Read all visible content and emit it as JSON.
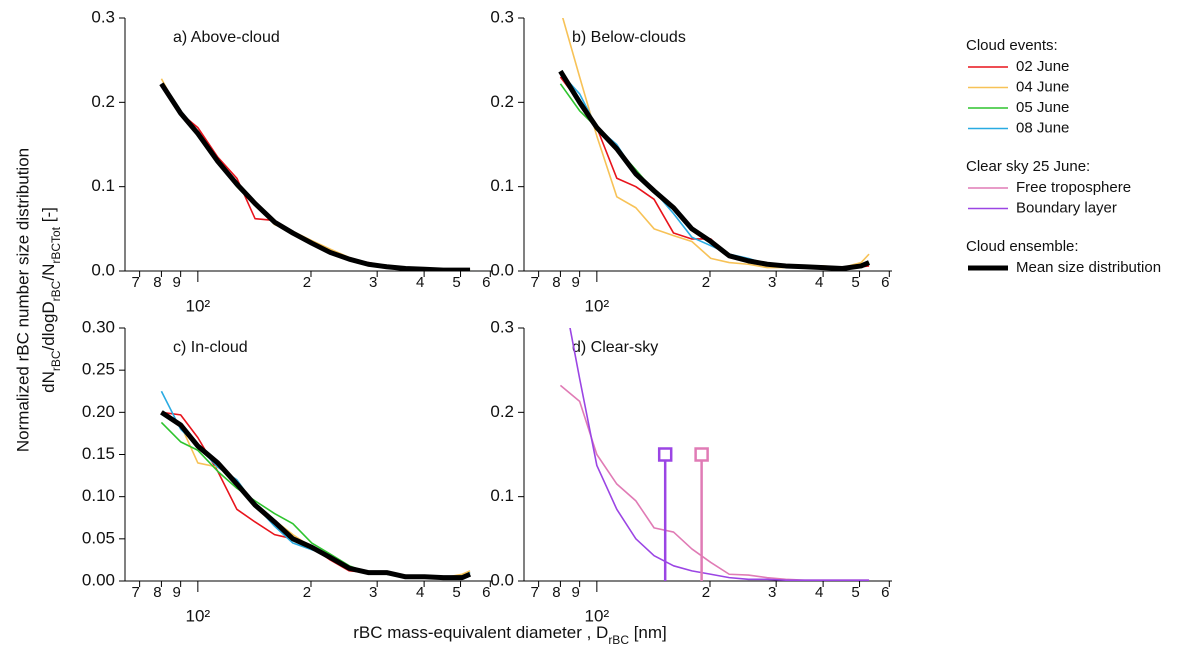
{
  "chart_data": [
    {
      "type": "line",
      "title": "a) Above-cloud",
      "log_x": true,
      "x": [
        80,
        90,
        100,
        113,
        127,
        142,
        160,
        179,
        201,
        225,
        253,
        284,
        318,
        357,
        401,
        450,
        505,
        530
      ],
      "xlim": [
        64,
        610
      ],
      "xticks": [
        {
          "value": 70,
          "label": "7"
        },
        {
          "value": 80,
          "label": "8"
        },
        {
          "value": 90,
          "label": "9"
        },
        {
          "value": 100,
          "label": "10²"
        },
        {
          "value": 200,
          "label": "2"
        },
        {
          "value": 300,
          "label": "3"
        },
        {
          "value": 400,
          "label": "4"
        },
        {
          "value": 500,
          "label": "5"
        },
        {
          "value": 600,
          "label": "6"
        }
      ],
      "ylim": [
        0,
        0.3
      ],
      "yticks": [
        {
          "value": 0,
          "label": "0.0"
        },
        0.1,
        0.2,
        0.3
      ],
      "series": [
        {
          "name": "02 June",
          "color": "#e8141c",
          "values": [
            0.222,
            0.187,
            0.17,
            0.135,
            0.11,
            0.062,
            0.06,
            0.045,
            0.035,
            0.025,
            0.014,
            0.01,
            0.006,
            0.003,
            0.002,
            0.001,
            0.001,
            0.001
          ]
        },
        {
          "name": "04 June",
          "color": "#f7c257",
          "values": [
            0.228,
            0.186,
            0.16,
            0.128,
            0.1,
            0.08,
            0.055,
            0.047,
            0.036,
            0.026,
            0.016,
            0.009,
            0.006,
            0.004,
            0.002,
            0.002,
            0.001,
            0.001
          ]
        },
        {
          "name": "05 June",
          "color": "#2ec42e",
          "values": [
            0.221,
            0.186,
            0.164,
            0.13,
            0.1,
            0.078,
            0.056,
            0.044,
            0.032,
            0.022,
            0.014,
            0.008,
            0.005,
            0.003,
            0.002,
            0.001,
            0.001,
            0.001
          ]
        },
        {
          "name": "08 June",
          "color": "#29abe2",
          "values": [
            0.222,
            0.187,
            0.165,
            0.131,
            0.104,
            0.078,
            0.057,
            0.045,
            0.033,
            0.022,
            0.013,
            0.008,
            0.005,
            0.003,
            0.002,
            0.001,
            0.001,
            0.001
          ]
        },
        {
          "name": "Mean size distribution",
          "color": "#000000",
          "line_width": 5,
          "values": [
            0.222,
            0.187,
            0.163,
            0.13,
            0.103,
            0.08,
            0.058,
            0.045,
            0.033,
            0.022,
            0.014,
            0.008,
            0.005,
            0.003,
            0.002,
            0.001,
            0.001,
            0.001
          ]
        }
      ]
    },
    {
      "type": "line",
      "title": "b) Below-clouds",
      "log_x": true,
      "x": [
        80,
        90,
        100,
        113,
        127,
        142,
        160,
        179,
        201,
        225,
        253,
        284,
        318,
        357,
        401,
        450,
        505,
        530
      ],
      "xlim": [
        64,
        610
      ],
      "xticks": [
        {
          "value": 70,
          "label": "7"
        },
        {
          "value": 80,
          "label": "8"
        },
        {
          "value": 90,
          "label": "9"
        },
        {
          "value": 100,
          "label": "10²"
        },
        {
          "value": 200,
          "label": "2"
        },
        {
          "value": 300,
          "label": "3"
        },
        {
          "value": 400,
          "label": "4"
        },
        {
          "value": 500,
          "label": "5"
        },
        {
          "value": 600,
          "label": "6"
        }
      ],
      "ylim": [
        0,
        0.3
      ],
      "yticks": [
        {
          "value": 0,
          "label": "0.0"
        },
        0.1,
        0.2,
        0.3
      ],
      "series": [
        {
          "name": "02 June",
          "color": "#e8141c",
          "values": [
            0.23,
            0.2,
            0.17,
            0.11,
            0.1,
            0.085,
            0.045,
            0.038,
            0.038,
            0.016,
            0.012,
            0.007,
            0.006,
            0.005,
            0.003,
            0.003,
            0.005,
            0.006
          ]
        },
        {
          "name": "04 June",
          "color": "#f7c257",
          "values": [
            0.31,
            0.23,
            0.16,
            0.088,
            0.075,
            0.05,
            0.042,
            0.035,
            0.015,
            0.01,
            0.008,
            0.004,
            0.004,
            0.005,
            0.006,
            0.004,
            0.01,
            0.02
          ]
        },
        {
          "name": "05 June",
          "color": "#2ec42e",
          "values": [
            0.222,
            0.19,
            0.17,
            0.145,
            0.12,
            0.095,
            0.075,
            0.052,
            0.035,
            0.018,
            0.012,
            0.008,
            0.006,
            0.005,
            0.004,
            0.003,
            0.005,
            0.01
          ]
        },
        {
          "name": "08 June",
          "color": "#29abe2",
          "values": [
            0.235,
            0.21,
            0.17,
            0.15,
            0.115,
            0.095,
            0.068,
            0.04,
            0.03,
            0.02,
            0.015,
            0.008,
            0.007,
            0.006,
            0.004,
            0.003,
            0.005,
            0.01
          ]
        },
        {
          "name": "Mean size distribution",
          "color": "#000000",
          "line_width": 5,
          "values": [
            0.237,
            0.2,
            0.17,
            0.145,
            0.115,
            0.095,
            0.075,
            0.05,
            0.035,
            0.018,
            0.012,
            0.008,
            0.006,
            0.005,
            0.004,
            0.003,
            0.006,
            0.01
          ]
        }
      ]
    },
    {
      "type": "line",
      "title": "c) In-cloud",
      "log_x": true,
      "x": [
        80,
        90,
        100,
        113,
        127,
        142,
        160,
        179,
        201,
        225,
        253,
        284,
        318,
        357,
        401,
        450,
        505,
        530
      ],
      "xlim": [
        64,
        610
      ],
      "xticks": [
        {
          "value": 70,
          "label": "7"
        },
        {
          "value": 80,
          "label": "8"
        },
        {
          "value": 90,
          "label": "9"
        },
        {
          "value": 100,
          "label": "10²"
        },
        {
          "value": 200,
          "label": "2"
        },
        {
          "value": 300,
          "label": "3"
        },
        {
          "value": 400,
          "label": "4"
        },
        {
          "value": 500,
          "label": "5"
        },
        {
          "value": 600,
          "label": "6"
        }
      ],
      "ylim": [
        0,
        0.3
      ],
      "yticks": [
        {
          "value": 0,
          "label": "0.00"
        },
        {
          "value": 0.05,
          "label": "0.05"
        },
        {
          "value": 0.1,
          "label": "0.10"
        },
        {
          "value": 0.15,
          "label": "0.15"
        },
        {
          "value": 0.2,
          "label": "0.20"
        },
        {
          "value": 0.25,
          "label": "0.25"
        },
        {
          "value": 0.3,
          "label": "0.30"
        }
      ],
      "series": [
        {
          "name": "02 June",
          "color": "#e8141c",
          "values": [
            0.2,
            0.197,
            0.17,
            0.13,
            0.085,
            0.07,
            0.055,
            0.05,
            0.04,
            0.025,
            0.012,
            0.01,
            0.01,
            0.005,
            0.005,
            0.004,
            0.005,
            0.01
          ]
        },
        {
          "name": "04 June",
          "color": "#f7c257",
          "values": [
            0.198,
            0.185,
            0.14,
            0.135,
            0.12,
            0.09,
            0.072,
            0.055,
            0.04,
            0.03,
            0.015,
            0.01,
            0.008,
            0.005,
            0.004,
            0.004,
            0.008,
            0.012
          ]
        },
        {
          "name": "05 June",
          "color": "#2ec42e",
          "values": [
            0.188,
            0.165,
            0.155,
            0.13,
            0.11,
            0.095,
            0.08,
            0.068,
            0.045,
            0.032,
            0.018,
            0.01,
            0.008,
            0.005,
            0.004,
            0.004,
            0.006,
            0.01
          ]
        },
        {
          "name": "08 June",
          "color": "#29abe2",
          "values": [
            0.225,
            0.18,
            0.16,
            0.135,
            0.12,
            0.09,
            0.065,
            0.045,
            0.037,
            0.03,
            0.015,
            0.01,
            0.008,
            0.005,
            0.005,
            0.004,
            0.005,
            0.01
          ]
        },
        {
          "name": "Mean size distribution",
          "color": "#000000",
          "line_width": 5,
          "values": [
            0.2,
            0.185,
            0.16,
            0.14,
            0.115,
            0.09,
            0.07,
            0.05,
            0.04,
            0.028,
            0.015,
            0.01,
            0.01,
            0.005,
            0.005,
            0.004,
            0.004,
            0.008
          ]
        }
      ]
    },
    {
      "type": "line",
      "title": "d) Clear-sky",
      "log_x": true,
      "x": [
        80,
        90,
        100,
        113,
        127,
        142,
        160,
        179,
        201,
        225,
        253,
        284,
        318,
        357,
        401,
        450,
        505,
        530
      ],
      "xlim": [
        64,
        610
      ],
      "xticks": [
        {
          "value": 70,
          "label": "7"
        },
        {
          "value": 80,
          "label": "8"
        },
        {
          "value": 90,
          "label": "9"
        },
        {
          "value": 100,
          "label": "10²"
        },
        {
          "value": 200,
          "label": "2"
        },
        {
          "value": 300,
          "label": "3"
        },
        {
          "value": 400,
          "label": "4"
        },
        {
          "value": 500,
          "label": "5"
        },
        {
          "value": 600,
          "label": "6"
        }
      ],
      "ylim": [
        0,
        0.3
      ],
      "yticks": [
        {
          "value": 0,
          "label": "0.0"
        },
        0.1,
        0.2,
        0.3
      ],
      "series": [
        {
          "name": "Free troposphere",
          "color": "#e07bb5",
          "values": [
            0.232,
            0.213,
            0.15,
            0.115,
            0.095,
            0.063,
            0.058,
            0.038,
            0.022,
            0.008,
            0.007,
            0.004,
            0.002,
            0.001,
            0.001,
            0.001,
            0.001,
            0.001
          ]
        },
        {
          "name": "Boundary layer",
          "color": "#9b45e4",
          "values": [
            0.36,
            0.24,
            0.137,
            0.085,
            0.05,
            0.03,
            0.018,
            0.012,
            0.008,
            0.004,
            0.002,
            0.002,
            0.001,
            0.001,
            0.001,
            0.001,
            0.001,
            0.001
          ]
        }
      ],
      "markers": [
        {
          "x": 152,
          "y": 0.15,
          "color": "#9b45e4"
        },
        {
          "x": 190,
          "y": 0.15,
          "color": "#e07bb5"
        }
      ]
    }
  ],
  "ylabel": {
    "line1": "Normalized rBC number size distribution",
    "line2": [
      {
        "text": "dN"
      },
      {
        "text": "rBC",
        "sub": true
      },
      {
        "text": "/dlogD"
      },
      {
        "text": "rBC",
        "sub": true
      },
      {
        "text": "/N"
      },
      {
        "text": "rBCTot",
        "sub": true
      },
      {
        "text": " [-]"
      }
    ]
  },
  "xlabel": [
    {
      "text": "rBC mass-equivalent diameter , D"
    },
    {
      "text": "rBC",
      "sub": true
    },
    {
      "text": " [nm]"
    }
  ],
  "legend": {
    "groups": [
      {
        "title": "Cloud events:",
        "entries": [
          {
            "name": "02 June",
            "color": "#e8141c"
          },
          {
            "name": "04 June",
            "color": "#f7c257"
          },
          {
            "name": "05 June",
            "color": "#2ec42e"
          },
          {
            "name": "08 June",
            "color": "#29abe2"
          }
        ]
      },
      {
        "title": "Clear sky 25 June:",
        "entries": [
          {
            "name": "Free troposphere",
            "color": "#e07bb5"
          },
          {
            "name": "Boundary layer",
            "color": "#9b45e4"
          }
        ]
      },
      {
        "title": "Cloud ensemble:",
        "entries": [
          {
            "name": "Mean size distribution",
            "color": "#000000",
            "line_width": 5
          }
        ]
      }
    ]
  }
}
